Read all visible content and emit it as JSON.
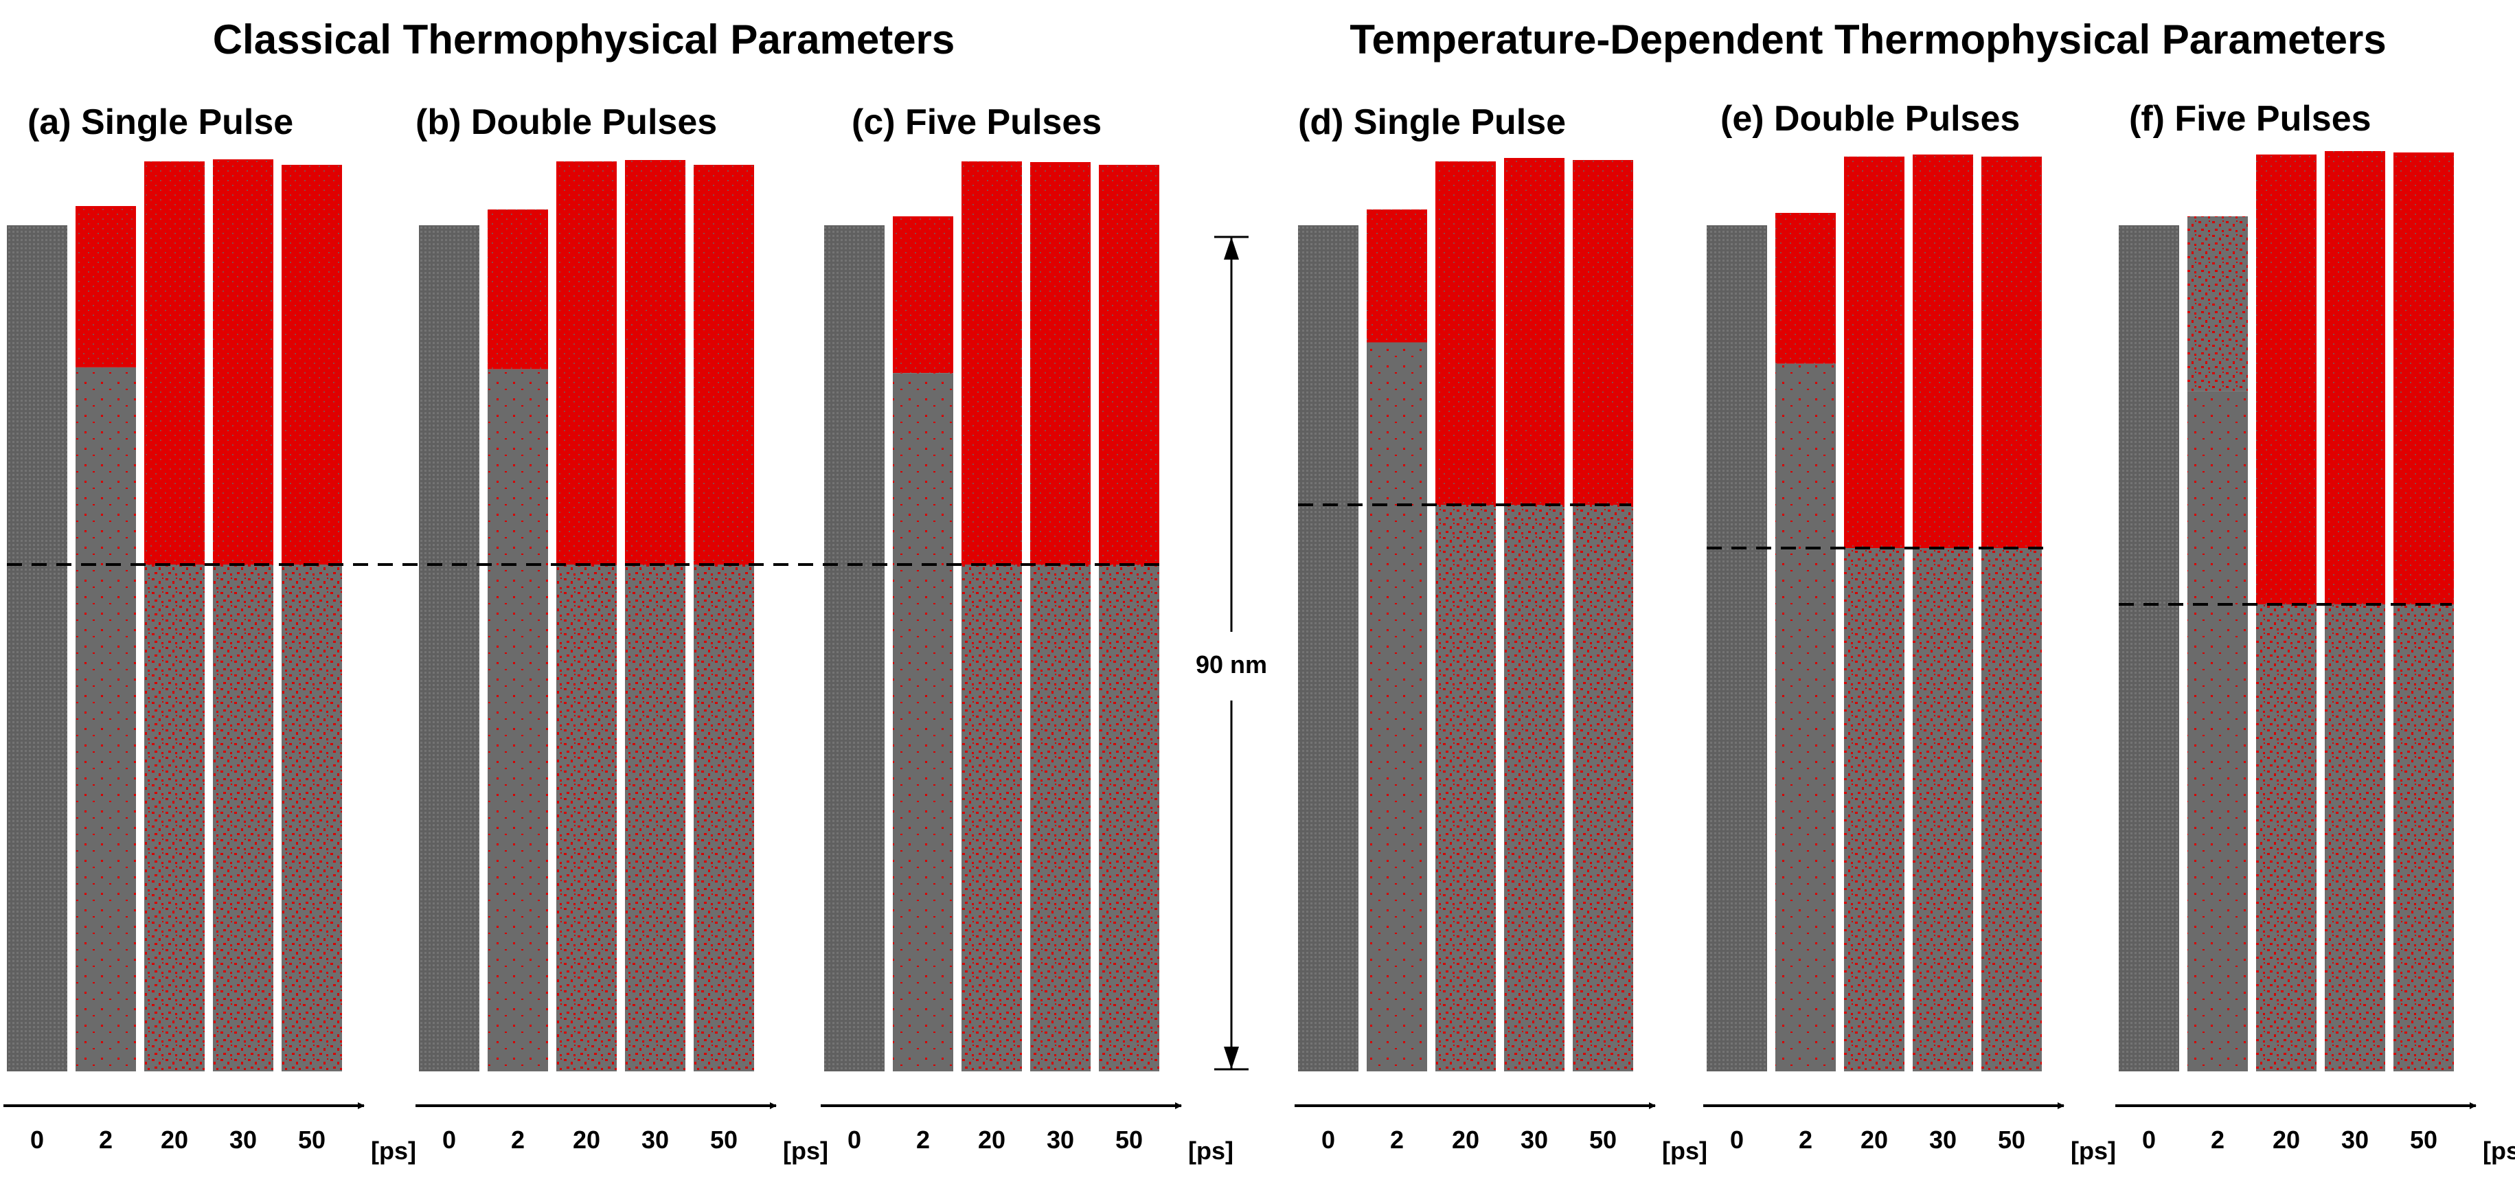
{
  "headers": {
    "left": "Classical Thermophysical Parameters",
    "right": "Temperature-Dependent Thermophysical Parameters"
  },
  "panels": [
    {
      "label": "(a) Single Pulse",
      "melt_depth_fraction": 0.41
    },
    {
      "label": "(b) Double Pulses",
      "melt_depth_fraction": 0.41
    },
    {
      "label": "(c) Five Pulses",
      "melt_depth_fraction": 0.41
    },
    {
      "label": "(d) Single Pulse",
      "melt_depth_fraction": 0.32
    },
    {
      "label": "(e) Double Pulses",
      "melt_depth_fraction": 0.37
    },
    {
      "label": "(f) Five Pulses",
      "melt_depth_fraction": 0.44
    }
  ],
  "time_axis": {
    "ticks": [
      "0",
      "2",
      "20",
      "30",
      "50"
    ],
    "unit": "[ps]"
  },
  "scale_bar": {
    "label": "90 nm"
  },
  "colors": {
    "solid": "#6b6b6b",
    "liquid": "#e00000",
    "initial": "#5f5f5f",
    "ink": "#000000"
  }
}
